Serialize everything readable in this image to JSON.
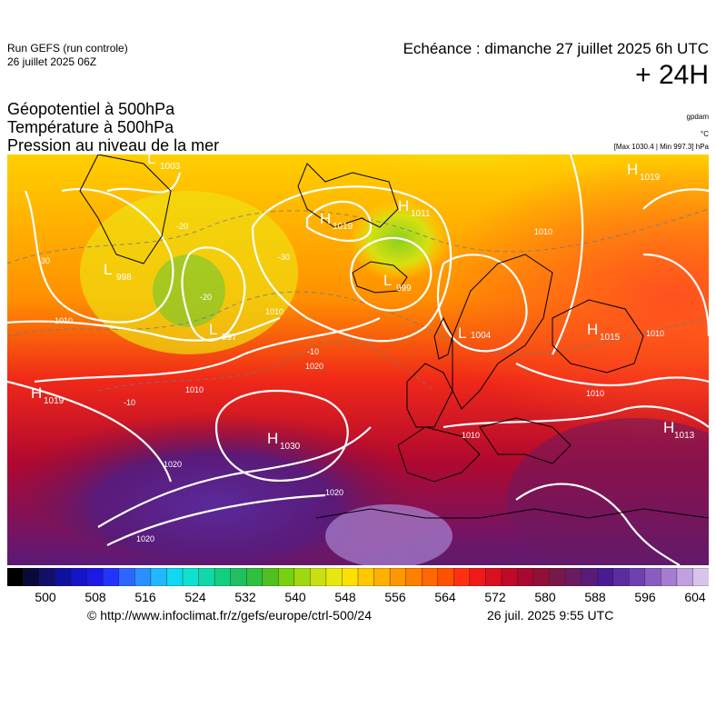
{
  "header": {
    "run_title": "Run GEFS (run controle)",
    "run_date": "26 juillet 2025 06Z",
    "echeance": "Echéance : dimanche 27 juillet 2025 6h UTC",
    "lead_time": "+ 24H",
    "titles": [
      "Géopotentiel à 500hPa",
      "Température à 500hPa",
      "Pression au niveau de la mer"
    ],
    "unit_geo": "gpdam",
    "unit_temp": "°C",
    "unit_pressure": "[Max 1030.4 | Min 997.3] hPa"
  },
  "pressure_centers": [
    {
      "type": "L",
      "value": "1003"
    },
    {
      "type": "H",
      "value": "1019"
    },
    {
      "type": "H",
      "value": "1011"
    },
    {
      "type": "L",
      "value": "999"
    },
    {
      "type": "H",
      "value": "1019"
    },
    {
      "type": "L",
      "value": "998"
    },
    {
      "type": "L",
      "value": "997"
    },
    {
      "type": "L",
      "value": "1004"
    },
    {
      "type": "H",
      "value": "1015"
    },
    {
      "type": "H",
      "value": "1019"
    },
    {
      "type": "H",
      "value": "1030"
    },
    {
      "type": "H",
      "value": "1013"
    }
  ],
  "isobar_labels": [
    "1010",
    "1010",
    "1020",
    "1010",
    "1020",
    "1020",
    "1010",
    "1010",
    "1010",
    "1010",
    "1020"
  ],
  "temp_labels": [
    "-30",
    "-20",
    "-20",
    "-30",
    "-10",
    "-10"
  ],
  "colorbar": {
    "ticks": [
      "500",
      "508",
      "516",
      "524",
      "532",
      "540",
      "548",
      "556",
      "564",
      "572",
      "580",
      "588",
      "596",
      "604"
    ],
    "colors": [
      "#000000",
      "#0a0a3a",
      "#10106a",
      "#1010a0",
      "#1414c8",
      "#1a1ae6",
      "#2233ff",
      "#2a66ff",
      "#2a90ff",
      "#20b8ff",
      "#10d8f0",
      "#10e0d0",
      "#10d8a8",
      "#10d080",
      "#20c060",
      "#30c040",
      "#50c020",
      "#78d010",
      "#a0d810",
      "#c8e010",
      "#e8e810",
      "#ffe000",
      "#ffc800",
      "#ffb000",
      "#ff9800",
      "#ff8000",
      "#ff6800",
      "#ff5000",
      "#ff3010",
      "#f01818",
      "#d81020",
      "#c00828",
      "#a80830",
      "#901038",
      "#781848",
      "#6a1a60",
      "#5a1a78",
      "#4a1a90",
      "#5a2ca0",
      "#7040b0",
      "#8a5cc0",
      "#a47cd0",
      "#c0a0e0",
      "#d8c4ec"
    ]
  },
  "footer": {
    "copyright": "© http://www.infoclimat.fr/z/gefs/europe/ctrl-500/24",
    "generated": "26 juil. 2025  9:55 UTC"
  }
}
